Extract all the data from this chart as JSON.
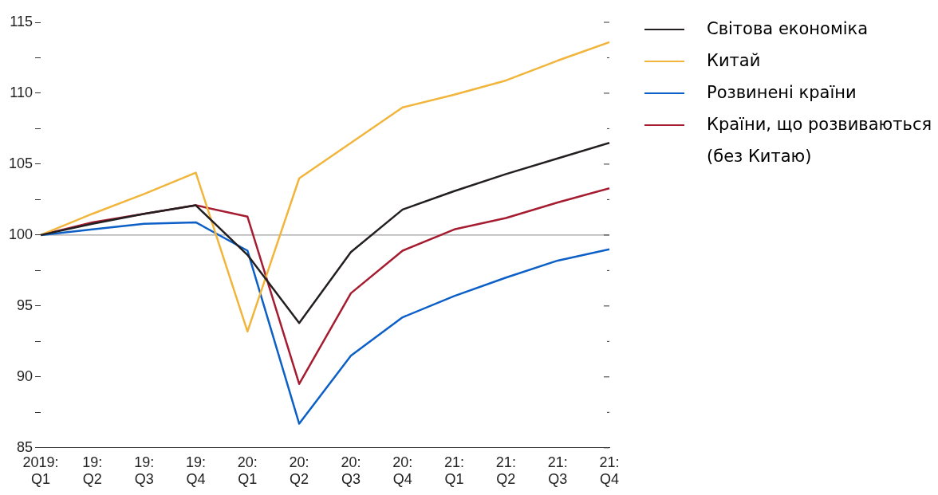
{
  "chart_data": {
    "type": "line",
    "categories": [
      "2019:\nQ1",
      "19:\nQ2",
      "19:\nQ3",
      "19:\nQ4",
      "20:\nQ1",
      "20:\nQ2",
      "20:\nQ3",
      "20:\nQ4",
      "21:\nQ1",
      "21:\nQ2",
      "21:\nQ3",
      "21:\nQ4"
    ],
    "series": [
      {
        "name": "Світова економіка",
        "color": "#231f20",
        "values": [
          100,
          100.8,
          101.5,
          102.1,
          98.6,
          93.8,
          98.8,
          101.8,
          103.1,
          104.3,
          105.4,
          106.5
        ]
      },
      {
        "name": "Китай",
        "color": "#f2b53c",
        "values": [
          100,
          101.5,
          102.9,
          104.4,
          93.2,
          104.0,
          106.5,
          109.0,
          109.9,
          110.9,
          112.3,
          113.6
        ]
      },
      {
        "name": "Розвинені країни",
        "color": "#0b5fc6",
        "values": [
          100,
          100.4,
          100.8,
          100.9,
          98.9,
          86.7,
          91.5,
          94.2,
          95.7,
          97.0,
          98.2,
          99.0
        ]
      },
      {
        "name": "Країни, що розвиваються (без Китаю)",
        "color": "#a51c30",
        "values": [
          100,
          100.9,
          101.5,
          102.1,
          101.3,
          89.5,
          95.9,
          98.9,
          100.4,
          101.2,
          102.3,
          103.3
        ]
      }
    ],
    "ylim": [
      85,
      115
    ],
    "yticks": [
      85,
      {
        "value": 87.5,
        "label": null
      },
      90,
      {
        "value": 92.5,
        "label": null
      },
      95,
      {
        "value": 97.5,
        "label": null
      },
      100,
      {
        "value": 102.5,
        "label": null
      },
      105,
      {
        "value": 107.5,
        "label": null
      },
      110,
      {
        "value": 112.5,
        "label": null
      },
      115
    ],
    "ref_lines": [
      {
        "axis": "y",
        "value": 100,
        "color": "#888888"
      }
    ],
    "grid": false,
    "legend": "right",
    "marker": "none",
    "line_style": "solid"
  }
}
